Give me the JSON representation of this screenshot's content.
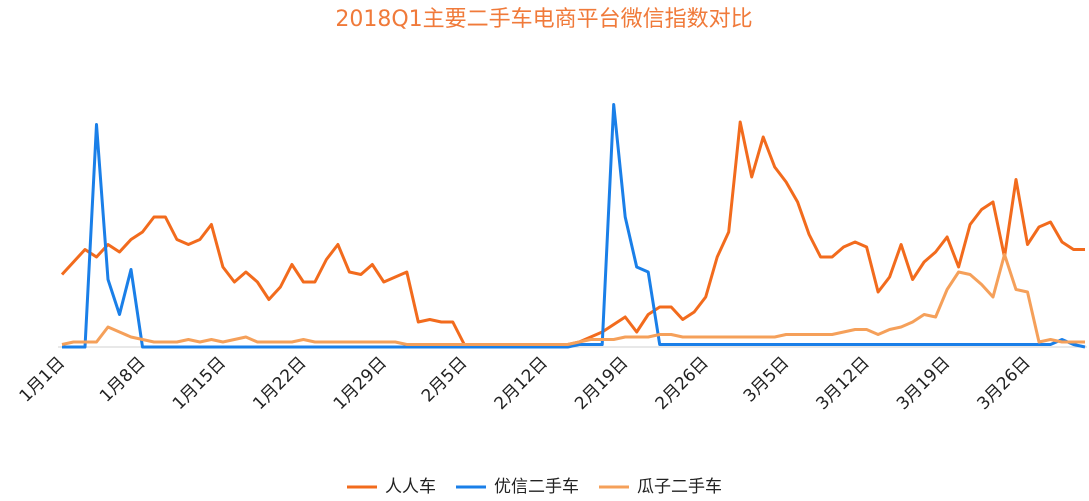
{
  "chart_data": {
    "type": "line",
    "title": "2018Q1主要二手车电商平台微信指数对比",
    "categories": [
      "1月1日",
      null,
      null,
      null,
      null,
      null,
      null,
      "1月8日",
      null,
      null,
      null,
      null,
      null,
      null,
      "1月15日",
      null,
      null,
      null,
      null,
      null,
      null,
      "1月22日",
      null,
      null,
      null,
      null,
      null,
      null,
      "1月29日",
      null,
      null,
      null,
      null,
      null,
      null,
      "2月5日",
      null,
      null,
      null,
      null,
      null,
      null,
      "2月12日",
      null,
      null,
      null,
      null,
      null,
      null,
      "2月19日",
      null,
      null,
      null,
      null,
      null,
      null,
      "2月26日",
      null,
      null,
      null,
      null,
      null,
      null,
      "3月5日",
      null,
      null,
      null,
      null,
      null,
      null,
      "3月12日",
      null,
      null,
      null,
      null,
      null,
      null,
      "3月19日",
      null,
      null,
      null,
      null,
      null,
      null,
      "3月26日",
      null,
      null,
      null,
      null,
      null
    ],
    "ylim": [
      0,
      100
    ],
    "legend": "bottom",
    "series": [
      {
        "name": "人人车",
        "color": "#f26b1d",
        "values": [
          29,
          34,
          39,
          36,
          41,
          38,
          43,
          46,
          52,
          52,
          43,
          41,
          43,
          49,
          32,
          26,
          30,
          26,
          19,
          24,
          33,
          26,
          26,
          35,
          41,
          30,
          29,
          33,
          26,
          28,
          30,
          10,
          11,
          10,
          10,
          1,
          1,
          1,
          1,
          1,
          1,
          1,
          1,
          1,
          1,
          2,
          4,
          6,
          9,
          12,
          6,
          13,
          16,
          16,
          11,
          14,
          20,
          36,
          46,
          90,
          68,
          84,
          72,
          66,
          58,
          45,
          36,
          36,
          40,
          42,
          40,
          22,
          28,
          41,
          27,
          34,
          38,
          44,
          32,
          49,
          55,
          58,
          36,
          67,
          41,
          48,
          50,
          42,
          39,
          39
        ]
      },
      {
        "name": "优信二手车",
        "color": "#1a7fe8",
        "values": [
          0,
          0,
          0,
          89,
          27,
          13,
          31,
          0,
          0,
          0,
          0,
          0,
          0,
          0,
          0,
          0,
          0,
          0,
          0,
          0,
          0,
          0,
          0,
          0,
          0,
          0,
          0,
          0,
          0,
          0,
          0,
          0,
          0,
          0,
          0,
          0,
          0,
          0,
          0,
          0,
          0,
          0,
          0,
          0,
          0,
          1,
          1,
          1,
          97,
          52,
          32,
          30,
          1,
          1,
          1,
          1,
          1,
          1,
          1,
          1,
          1,
          1,
          1,
          1,
          1,
          1,
          1,
          1,
          1,
          1,
          1,
          1,
          1,
          1,
          1,
          1,
          1,
          1,
          1,
          1,
          1,
          1,
          1,
          1,
          1,
          1,
          1,
          3,
          1,
          0
        ]
      },
      {
        "name": "瓜子二手车",
        "color": "#f5a05a",
        "values": [
          1,
          2,
          2,
          2,
          8,
          6,
          4,
          3,
          2,
          2,
          2,
          3,
          2,
          3,
          2,
          3,
          4,
          2,
          2,
          2,
          2,
          3,
          2,
          2,
          2,
          2,
          2,
          2,
          2,
          2,
          1,
          1,
          1,
          1,
          1,
          1,
          1,
          1,
          1,
          1,
          1,
          1,
          1,
          1,
          1,
          2,
          3,
          3,
          3,
          4,
          4,
          4,
          5,
          5,
          4,
          4,
          4,
          4,
          4,
          4,
          4,
          4,
          4,
          5,
          5,
          5,
          5,
          5,
          6,
          7,
          7,
          5,
          7,
          8,
          10,
          13,
          12,
          23,
          30,
          29,
          25,
          20,
          37,
          23,
          22,
          2,
          3,
          2,
          2,
          2
        ]
      }
    ]
  }
}
